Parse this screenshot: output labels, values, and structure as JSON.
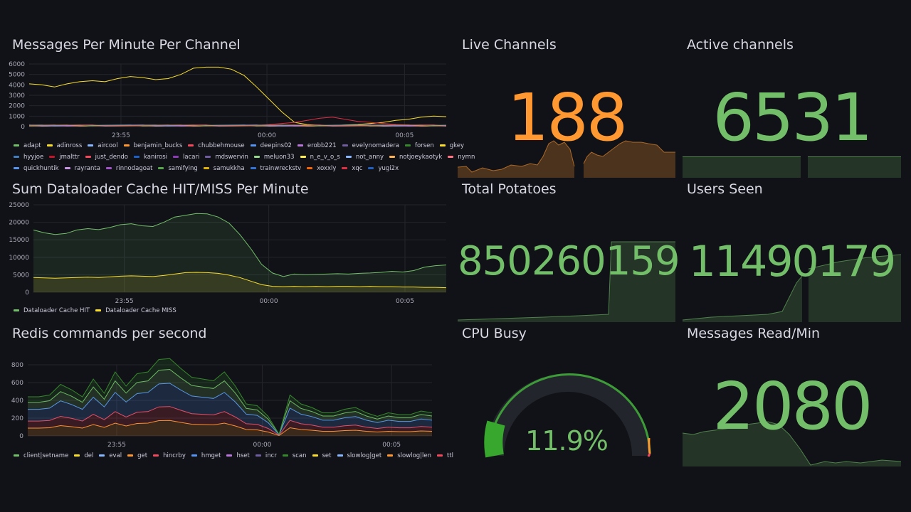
{
  "colors": {
    "green": "#73bf69",
    "orange": "#ff9830",
    "yellow": "#fade2a",
    "red": "#f2495c",
    "background": "#111217"
  },
  "panels": {
    "messages_per_minute": {
      "title": "Messages Per Minute Per Channel",
      "y_ticks": [
        "6000",
        "5000",
        "4000",
        "3000",
        "2000",
        "1000",
        "0"
      ],
      "x_ticks": [
        "23:55",
        "00:00",
        "00:05"
      ],
      "legend_rows": [
        [
          {
            "name": "adapt",
            "color": "#73bf69"
          },
          {
            "name": "adinross",
            "color": "#fade2a"
          },
          {
            "name": "aircool",
            "color": "#8ab8ff"
          },
          {
            "name": "benjamin_bucks",
            "color": "#ff9830"
          },
          {
            "name": "chubbehmouse",
            "color": "#f2495c"
          },
          {
            "name": "deepins02",
            "color": "#5794f2"
          },
          {
            "name": "erobb221",
            "color": "#b877d9"
          },
          {
            "name": "evelynomadera",
            "color": "#705da0"
          },
          {
            "name": "forsen",
            "color": "#37872d"
          },
          {
            "name": "gkey",
            "color": "#fade2a"
          }
        ],
        [
          {
            "name": "hyyjoe",
            "color": "#447ebc"
          },
          {
            "name": "jmalttr",
            "color": "#c4162a"
          },
          {
            "name": "just_dendo",
            "color": "#f2495c"
          },
          {
            "name": "kanirosi",
            "color": "#1f60c4"
          },
          {
            "name": "lacari",
            "color": "#8f3bb8"
          },
          {
            "name": "mdswervin",
            "color": "#705da0"
          },
          {
            "name": "meluon33",
            "color": "#96d98d"
          },
          {
            "name": "n_e_v_o_s",
            "color": "#ffee52"
          },
          {
            "name": "not_anny",
            "color": "#8ab8ff"
          },
          {
            "name": "notjoeykaotyk",
            "color": "#ffb357"
          },
          {
            "name": "nymn",
            "color": "#ff7383"
          }
        ],
        [
          {
            "name": "quickhuntik",
            "color": "#5794f2"
          },
          {
            "name": "rayranta",
            "color": "#ca95e5"
          },
          {
            "name": "rinnodagoat",
            "color": "#a352cc"
          },
          {
            "name": "samifying",
            "color": "#56a64b"
          },
          {
            "name": "samukkha",
            "color": "#e0b400"
          },
          {
            "name": "trainwreckstv",
            "color": "#3274d9"
          },
          {
            "name": "xoxxly",
            "color": "#fa6400"
          },
          {
            "name": "xqc",
            "color": "#e02f44"
          },
          {
            "name": "yugi2x",
            "color": "#1f60c4"
          }
        ]
      ]
    },
    "dataloader": {
      "title": "Sum Dataloader Cache HIT/MISS Per Minute",
      "y_ticks": [
        "25000",
        "20000",
        "15000",
        "10000",
        "5000",
        "0"
      ],
      "x_ticks": [
        "23:55",
        "00:00",
        "00:05"
      ],
      "legend": [
        {
          "name": "Dataloader Cache HIT",
          "color": "#73bf69"
        },
        {
          "name": "Dataloader Cache MISS",
          "color": "#fade2a"
        }
      ]
    },
    "redis": {
      "title": "Redis commands per second",
      "y_ticks": [
        "800",
        "600",
        "400",
        "200",
        "0"
      ],
      "x_ticks": [
        "23:55",
        "00:00",
        "00:05"
      ],
      "legend": [
        {
          "name": "client|setname",
          "color": "#73bf69"
        },
        {
          "name": "del",
          "color": "#fade2a"
        },
        {
          "name": "eval",
          "color": "#8ab8ff"
        },
        {
          "name": "get",
          "color": "#ff9830"
        },
        {
          "name": "hincrby",
          "color": "#f2495c"
        },
        {
          "name": "hmget",
          "color": "#5794f2"
        },
        {
          "name": "hset",
          "color": "#b877d9"
        },
        {
          "name": "incr",
          "color": "#705da0"
        },
        {
          "name": "scan",
          "color": "#37872d"
        },
        {
          "name": "set",
          "color": "#fade2a"
        },
        {
          "name": "slowlog|get",
          "color": "#8ab8ff"
        },
        {
          "name": "slowlog|len",
          "color": "#ff9830"
        },
        {
          "name": "ttl",
          "color": "#f2495c"
        }
      ]
    },
    "live_channels": {
      "title": "Live Channels",
      "value": "188",
      "color": "#ff9830"
    },
    "active_channels": {
      "title": "Active channels",
      "value": "6531",
      "color": "#73bf69"
    },
    "total_potatoes": {
      "title": "Total Potatoes",
      "value": "850260159",
      "color": "#73bf69"
    },
    "users_seen": {
      "title": "Users Seen",
      "value": "11490179",
      "color": "#73bf69"
    },
    "cpu_busy": {
      "title": "CPU Busy",
      "value": "11.9%",
      "fraction": 0.119,
      "color": "#73bf69"
    },
    "messages_read": {
      "title": "Messages Read/Min",
      "value": "2080",
      "color": "#73bf69"
    }
  }
}
